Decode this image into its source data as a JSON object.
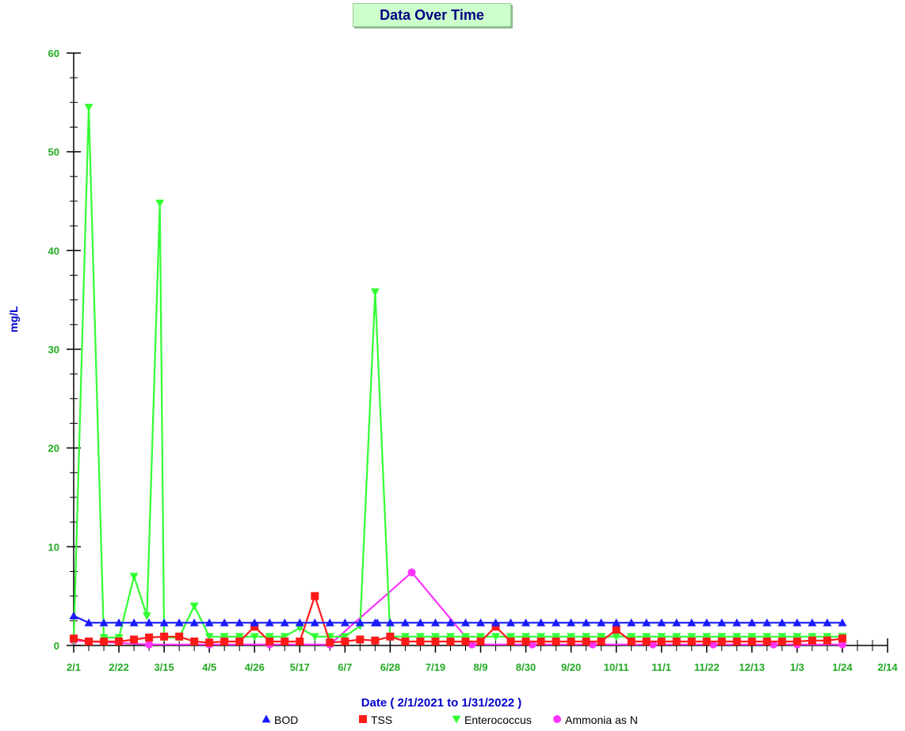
{
  "title": "Data Over Time",
  "colors": {
    "axis": "#000000",
    "tick_label": "#22aa22",
    "axis_title": "#0000cc",
    "BOD": "#1a1aff",
    "TSS": "#ff1a1a",
    "Enterococcus": "#33ff33",
    "Ammonia as N": "#ff33ff",
    "title_bg": "#ccffcc",
    "title_text": "#000080"
  },
  "chart_data": {
    "type": "line",
    "title": "Data Over Time",
    "xlabel": "Date  ( 2/1/2021  to  1/31/2022 )",
    "ylabel": "mg/L",
    "ylim": [
      0,
      60
    ],
    "yticks": [
      0,
      10,
      20,
      30,
      40,
      50,
      60
    ],
    "y_minor_step": 2.5,
    "xlim": [
      "2021-02-01",
      "2022-02-14"
    ],
    "x_tick_labels": [
      "2/1",
      "2/22",
      "3/15",
      "4/5",
      "4/26",
      "5/17",
      "6/7",
      "6/28",
      "7/19",
      "8/9",
      "8/30",
      "9/20",
      "10/11",
      "11/1",
      "11/22",
      "12/13",
      "1/3",
      "1/24",
      "2/14"
    ],
    "x_tick_dates": [
      "2021-02-01",
      "2021-02-22",
      "2021-03-15",
      "2021-04-05",
      "2021-04-26",
      "2021-05-17",
      "2021-06-07",
      "2021-06-28",
      "2021-07-19",
      "2021-08-09",
      "2021-08-30",
      "2021-09-20",
      "2021-10-11",
      "2021-11-01",
      "2021-11-22",
      "2021-12-13",
      "2022-01-03",
      "2022-01-24",
      "2022-02-14"
    ],
    "x_minor_days": 7,
    "grid": false,
    "legend_position": "bottom",
    "series": [
      {
        "name": "BOD",
        "marker": "triangle-up",
        "x": [
          "2021-02-01",
          "2021-02-08",
          "2021-02-15",
          "2021-02-22",
          "2021-03-01",
          "2021-03-08",
          "2021-03-15",
          "2021-03-22",
          "2021-03-29",
          "2021-04-05",
          "2021-04-12",
          "2021-04-19",
          "2021-04-26",
          "2021-05-03",
          "2021-05-10",
          "2021-05-17",
          "2021-05-24",
          "2021-05-31",
          "2021-06-07",
          "2021-06-14",
          "2021-06-21",
          "2021-06-22",
          "2021-06-28",
          "2021-07-05",
          "2021-07-12",
          "2021-07-19",
          "2021-07-26",
          "2021-08-02",
          "2021-08-09",
          "2021-08-16",
          "2021-08-23",
          "2021-08-30",
          "2021-09-06",
          "2021-09-13",
          "2021-09-20",
          "2021-09-27",
          "2021-10-04",
          "2021-10-11",
          "2021-10-18",
          "2021-10-25",
          "2021-11-01",
          "2021-11-08",
          "2021-11-15",
          "2021-11-22",
          "2021-11-29",
          "2021-12-06",
          "2021-12-13",
          "2021-12-20",
          "2021-12-27",
          "2022-01-03",
          "2022-01-10",
          "2022-01-17",
          "2022-01-24"
        ],
        "y": [
          3,
          2.3,
          2.3,
          2.3,
          2.3,
          2.3,
          2.3,
          2.3,
          2.3,
          2.3,
          2.3,
          2.3,
          2.3,
          2.3,
          2.3,
          2.3,
          2.3,
          2.3,
          2.3,
          2.3,
          2.3,
          2.3,
          2.3,
          2.3,
          2.3,
          2.3,
          2.3,
          2.3,
          2.3,
          2.3,
          2.3,
          2.3,
          2.3,
          2.3,
          2.3,
          2.3,
          2.3,
          2.3,
          2.3,
          2.3,
          2.3,
          2.3,
          2.3,
          2.3,
          2.3,
          2.3,
          2.3,
          2.3,
          2.3,
          2.3,
          2.3,
          2.3,
          2.3
        ]
      },
      {
        "name": "TSS",
        "marker": "square",
        "x": [
          "2021-02-01",
          "2021-02-08",
          "2021-02-15",
          "2021-02-22",
          "2021-03-01",
          "2021-03-08",
          "2021-03-15",
          "2021-03-22",
          "2021-03-29",
          "2021-04-05",
          "2021-04-12",
          "2021-04-19",
          "2021-04-26",
          "2021-05-03",
          "2021-05-10",
          "2021-05-17",
          "2021-05-24",
          "2021-05-31",
          "2021-06-07",
          "2021-06-14",
          "2021-06-21",
          "2021-06-28",
          "2021-07-05",
          "2021-07-12",
          "2021-07-19",
          "2021-07-26",
          "2021-08-02",
          "2021-08-09",
          "2021-08-16",
          "2021-08-23",
          "2021-08-30",
          "2021-09-06",
          "2021-09-13",
          "2021-09-20",
          "2021-09-27",
          "2021-10-04",
          "2021-10-11",
          "2021-10-18",
          "2021-10-25",
          "2021-11-01",
          "2021-11-08",
          "2021-11-15",
          "2021-11-22",
          "2021-11-29",
          "2021-12-06",
          "2021-12-13",
          "2021-12-20",
          "2021-12-27",
          "2022-01-03",
          "2022-01-10",
          "2022-01-17",
          "2022-01-24"
        ],
        "y": [
          0.7,
          0.4,
          0.4,
          0.4,
          0.6,
          0.8,
          0.9,
          0.9,
          0.4,
          0.3,
          0.4,
          0.4,
          1.9,
          0.4,
          0.4,
          0.4,
          5.0,
          0.3,
          0.4,
          0.6,
          0.5,
          0.9,
          0.4,
          0.4,
          0.4,
          0.4,
          0.4,
          0.4,
          1.9,
          0.4,
          0.4,
          0.4,
          0.4,
          0.4,
          0.4,
          0.4,
          1.6,
          0.4,
          0.4,
          0.4,
          0.4,
          0.4,
          0.4,
          0.4,
          0.4,
          0.4,
          0.4,
          0.4,
          0.4,
          0.5,
          0.5,
          0.7
        ]
      },
      {
        "name": "Enterococcus",
        "marker": "triangle-down",
        "x": [
          "2021-02-01",
          "2021-02-08",
          "2021-02-15",
          "2021-02-22",
          "2021-03-01",
          "2021-03-07",
          "2021-03-13",
          "2021-03-15",
          "2021-03-22",
          "2021-03-29",
          "2021-04-05",
          "2021-04-12",
          "2021-04-19",
          "2021-04-26",
          "2021-05-03",
          "2021-05-10",
          "2021-05-17",
          "2021-05-24",
          "2021-05-31",
          "2021-06-07",
          "2021-06-14",
          "2021-06-21",
          "2021-06-28",
          "2021-07-05",
          "2021-07-12",
          "2021-07-19",
          "2021-07-26",
          "2021-08-02",
          "2021-08-09",
          "2021-08-16",
          "2021-08-23",
          "2021-08-30",
          "2021-09-06",
          "2021-09-13",
          "2021-09-20",
          "2021-09-27",
          "2021-10-04",
          "2021-10-11",
          "2021-10-18",
          "2021-10-25",
          "2021-11-01",
          "2021-11-08",
          "2021-11-15",
          "2021-11-22",
          "2021-11-29",
          "2021-12-06",
          "2021-12-13",
          "2021-12-20",
          "2021-12-27",
          "2022-01-03",
          "2022-01-10",
          "2022-01-17",
          "2022-01-24"
        ],
        "y": [
          0.5,
          54.5,
          0.8,
          0.8,
          7.0,
          3.0,
          44.8,
          0.8,
          0.8,
          4.0,
          0.9,
          0.9,
          0.9,
          0.9,
          0.9,
          0.9,
          1.8,
          0.9,
          0.9,
          0.9,
          2.0,
          35.8,
          0.9,
          0.9,
          0.9,
          0.9,
          0.9,
          0.9,
          0.9,
          0.9,
          0.9,
          0.9,
          0.9,
          0.9,
          0.9,
          0.9,
          0.9,
          0.9,
          0.9,
          0.9,
          0.9,
          0.9,
          0.9,
          0.9,
          0.9,
          0.9,
          0.9,
          0.9,
          0.9,
          0.9,
          0.9,
          0.9,
          0.9
        ]
      },
      {
        "name": "Ammonia as N",
        "marker": "circle",
        "x": [
          "2021-02-01",
          "2021-03-08",
          "2021-04-05",
          "2021-05-03",
          "2021-05-31",
          "2021-07-08",
          "2021-08-05",
          "2021-09-02",
          "2021-09-30",
          "2021-10-28",
          "2021-11-25",
          "2021-12-23",
          "2022-01-03",
          "2022-01-24"
        ],
        "y": [
          0.5,
          0.1,
          0.1,
          0.1,
          0.1,
          7.4,
          0.1,
          0.1,
          0.1,
          0.1,
          0.1,
          0.1,
          0.1,
          0.1
        ]
      }
    ]
  }
}
